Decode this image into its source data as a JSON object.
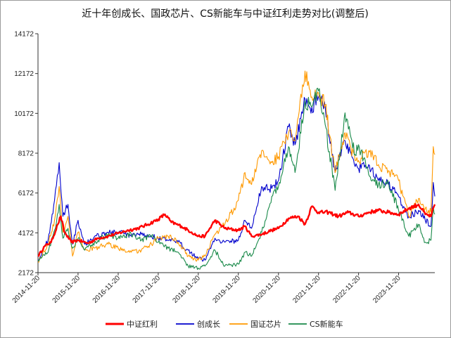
{
  "chart_data": {
    "type": "line",
    "title": "近十年创成长、国政芯片、CS新能车与中证红利走势对比(调整后)",
    "xlabel": "",
    "ylabel": "",
    "ylim": [
      2172,
      14172
    ],
    "y_ticks": [
      "2172",
      "4172",
      "6172",
      "8172",
      "10172",
      "12172",
      "14172"
    ],
    "x_ticks": [
      "2014-11-20",
      "2015-11-20",
      "2016-11-20",
      "2017-11-20",
      "2018-11-20",
      "2019-11-20",
      "2020-11-20",
      "2021-11-20",
      "2022-11-20",
      "2023-11-20"
    ],
    "x_range": [
      "2014-11-20",
      "2024-10-15"
    ],
    "grid": false,
    "legend_position": "bottom",
    "series": [
      {
        "name": "中证红利",
        "color": "#ff0000",
        "points": [
          [
            "2014-11-20",
            3000
          ],
          [
            "2015-01-20",
            3500
          ],
          [
            "2015-03-20",
            3700
          ],
          [
            "2015-05-20",
            4600
          ],
          [
            "2015-06-15",
            5000
          ],
          [
            "2015-07-20",
            4200
          ],
          [
            "2015-09-20",
            3700
          ],
          [
            "2015-11-20",
            3800
          ],
          [
            "2016-02-20",
            3650
          ],
          [
            "2016-05-20",
            3900
          ],
          [
            "2016-08-20",
            4000
          ],
          [
            "2016-11-20",
            4150
          ],
          [
            "2017-02-20",
            4300
          ],
          [
            "2017-05-20",
            4400
          ],
          [
            "2017-08-20",
            4600
          ],
          [
            "2017-11-20",
            4850
          ],
          [
            "2018-01-20",
            5100
          ],
          [
            "2018-03-20",
            4700
          ],
          [
            "2018-06-20",
            4500
          ],
          [
            "2018-09-20",
            4200
          ],
          [
            "2018-11-20",
            4000
          ],
          [
            "2019-01-20",
            4000
          ],
          [
            "2019-04-20",
            4800
          ],
          [
            "2019-07-20",
            4400
          ],
          [
            "2019-11-20",
            4300
          ],
          [
            "2020-01-20",
            4500
          ],
          [
            "2020-03-20",
            4000
          ],
          [
            "2020-06-20",
            4100
          ],
          [
            "2020-09-20",
            4300
          ],
          [
            "2020-11-20",
            4400
          ],
          [
            "2021-02-20",
            4900
          ],
          [
            "2021-05-20",
            5000
          ],
          [
            "2021-07-20",
            4600
          ],
          [
            "2021-09-20",
            5500
          ],
          [
            "2021-11-20",
            5200
          ],
          [
            "2022-02-20",
            5200
          ],
          [
            "2022-05-20",
            5000
          ],
          [
            "2022-08-20",
            5200
          ],
          [
            "2022-11-20",
            5000
          ],
          [
            "2023-02-20",
            5200
          ],
          [
            "2023-05-20",
            5300
          ],
          [
            "2023-08-20",
            5200
          ],
          [
            "2023-11-20",
            5100
          ],
          [
            "2024-02-20",
            5400
          ],
          [
            "2024-05-20",
            5600
          ],
          [
            "2024-07-20",
            5100
          ],
          [
            "2024-09-10",
            5000
          ],
          [
            "2024-10-15",
            5600
          ]
        ]
      },
      {
        "name": "创成长",
        "color": "#0000cc",
        "points": [
          [
            "2014-11-20",
            2800
          ],
          [
            "2015-02-20",
            3800
          ],
          [
            "2015-04-20",
            5800
          ],
          [
            "2015-06-01",
            7700
          ],
          [
            "2015-07-05",
            5000
          ],
          [
            "2015-08-20",
            5600
          ],
          [
            "2015-10-01",
            3600
          ],
          [
            "2015-11-20",
            4800
          ],
          [
            "2016-01-20",
            3600
          ],
          [
            "2016-04-20",
            4000
          ],
          [
            "2016-08-20",
            4200
          ],
          [
            "2016-11-20",
            4200
          ],
          [
            "2017-03-20",
            4000
          ],
          [
            "2017-06-20",
            4100
          ],
          [
            "2017-09-20",
            4000
          ],
          [
            "2017-11-20",
            3900
          ],
          [
            "2018-02-20",
            3800
          ],
          [
            "2018-05-20",
            3700
          ],
          [
            "2018-08-20",
            3300
          ],
          [
            "2018-11-20",
            2900
          ],
          [
            "2019-01-20",
            2800
          ],
          [
            "2019-04-20",
            3900
          ],
          [
            "2019-07-20",
            3700
          ],
          [
            "2019-11-20",
            3800
          ],
          [
            "2020-01-20",
            4800
          ],
          [
            "2020-03-20",
            4400
          ],
          [
            "2020-06-20",
            6500
          ],
          [
            "2020-09-20",
            6400
          ],
          [
            "2020-11-20",
            6800
          ],
          [
            "2021-02-20",
            9500
          ],
          [
            "2021-04-20",
            8600
          ],
          [
            "2021-07-20",
            10900
          ],
          [
            "2021-09-20",
            10500
          ],
          [
            "2021-11-20",
            11000
          ],
          [
            "2022-01-20",
            10500
          ],
          [
            "2022-04-20",
            7200
          ],
          [
            "2022-07-20",
            8800
          ],
          [
            "2022-10-20",
            7500
          ],
          [
            "2022-11-20",
            7400
          ],
          [
            "2023-02-20",
            7600
          ],
          [
            "2023-05-20",
            6800
          ],
          [
            "2023-08-20",
            6600
          ],
          [
            "2023-11-20",
            6000
          ],
          [
            "2024-02-20",
            5000
          ],
          [
            "2024-05-20",
            5300
          ],
          [
            "2024-07-20",
            4800
          ],
          [
            "2024-09-10",
            4500
          ],
          [
            "2024-10-01",
            6700
          ],
          [
            "2024-10-15",
            6000
          ]
        ]
      },
      {
        "name": "国证芯片",
        "color": "#ff9900",
        "points": [
          [
            "2014-11-20",
            2700
          ],
          [
            "2015-02-20",
            3600
          ],
          [
            "2015-04-20",
            4800
          ],
          [
            "2015-06-01",
            6500
          ],
          [
            "2015-07-05",
            4200
          ],
          [
            "2015-08-20",
            5000
          ],
          [
            "2015-10-01",
            3000
          ],
          [
            "2015-11-20",
            4200
          ],
          [
            "2016-01-20",
            3300
          ],
          [
            "2016-04-20",
            3400
          ],
          [
            "2016-08-20",
            3600
          ],
          [
            "2016-11-20",
            3400
          ],
          [
            "2017-03-20",
            3200
          ],
          [
            "2017-06-20",
            3300
          ],
          [
            "2017-09-20",
            3600
          ],
          [
            "2017-11-20",
            3900
          ],
          [
            "2018-02-20",
            4000
          ],
          [
            "2018-05-20",
            3700
          ],
          [
            "2018-08-20",
            3000
          ],
          [
            "2018-11-20",
            2800
          ],
          [
            "2019-01-20",
            3000
          ],
          [
            "2019-04-20",
            4100
          ],
          [
            "2019-07-20",
            4600
          ],
          [
            "2019-11-20",
            5800
          ],
          [
            "2020-01-20",
            7200
          ],
          [
            "2020-03-20",
            6600
          ],
          [
            "2020-06-20",
            8300
          ],
          [
            "2020-09-20",
            7700
          ],
          [
            "2020-11-20",
            8000
          ],
          [
            "2021-02-20",
            9200
          ],
          [
            "2021-04-20",
            8800
          ],
          [
            "2021-07-20",
            12300
          ],
          [
            "2021-09-20",
            11000
          ],
          [
            "2021-11-20",
            11200
          ],
          [
            "2022-01-20",
            10600
          ],
          [
            "2022-04-20",
            7200
          ],
          [
            "2022-07-20",
            9200
          ],
          [
            "2022-10-20",
            7800
          ],
          [
            "2022-11-20",
            7800
          ],
          [
            "2023-02-20",
            8300
          ],
          [
            "2023-05-20",
            7600
          ],
          [
            "2023-08-20",
            7300
          ],
          [
            "2023-11-20",
            6800
          ],
          [
            "2024-02-20",
            5000
          ],
          [
            "2024-05-20",
            5900
          ],
          [
            "2024-07-20",
            5400
          ],
          [
            "2024-09-10",
            5200
          ],
          [
            "2024-10-01",
            8500
          ],
          [
            "2024-10-15",
            8100
          ]
        ]
      },
      {
        "name": "CS新能车",
        "color": "#1a8a4a",
        "points": [
          [
            "2014-11-20",
            2800
          ],
          [
            "2015-02-20",
            3200
          ],
          [
            "2015-04-20",
            4300
          ],
          [
            "2015-06-01",
            5600
          ],
          [
            "2015-07-05",
            3900
          ],
          [
            "2015-08-20",
            4400
          ],
          [
            "2015-10-01",
            3400
          ],
          [
            "2015-11-20",
            3900
          ],
          [
            "2016-01-20",
            3300
          ],
          [
            "2016-04-20",
            3700
          ],
          [
            "2016-08-20",
            4100
          ],
          [
            "2016-11-20",
            3900
          ],
          [
            "2017-03-20",
            4100
          ],
          [
            "2017-06-20",
            3800
          ],
          [
            "2017-09-20",
            4000
          ],
          [
            "2017-11-20",
            3700
          ],
          [
            "2018-02-20",
            3400
          ],
          [
            "2018-05-20",
            3200
          ],
          [
            "2018-08-20",
            2500
          ],
          [
            "2018-11-20",
            2400
          ],
          [
            "2019-01-20",
            2500
          ],
          [
            "2019-04-20",
            3300
          ],
          [
            "2019-07-20",
            2500
          ],
          [
            "2019-11-20",
            2600
          ],
          [
            "2020-01-20",
            3200
          ],
          [
            "2020-03-20",
            3000
          ],
          [
            "2020-06-20",
            4200
          ],
          [
            "2020-09-20",
            6000
          ],
          [
            "2020-11-20",
            6500
          ],
          [
            "2021-02-20",
            8500
          ],
          [
            "2021-04-20",
            7200
          ],
          [
            "2021-07-20",
            10800
          ],
          [
            "2021-09-20",
            10500
          ],
          [
            "2021-11-20",
            11300
          ],
          [
            "2022-01-20",
            9600
          ],
          [
            "2022-04-20",
            6300
          ],
          [
            "2022-07-20",
            10200
          ],
          [
            "2022-10-20",
            8100
          ],
          [
            "2022-11-20",
            8600
          ],
          [
            "2023-02-20",
            7100
          ],
          [
            "2023-05-20",
            6600
          ],
          [
            "2023-08-20",
            6700
          ],
          [
            "2023-11-20",
            5300
          ],
          [
            "2024-02-20",
            4000
          ],
          [
            "2024-05-20",
            4600
          ],
          [
            "2024-07-20",
            3700
          ],
          [
            "2024-09-10",
            3800
          ],
          [
            "2024-10-01",
            5500
          ],
          [
            "2024-10-15",
            5100
          ]
        ]
      }
    ]
  }
}
